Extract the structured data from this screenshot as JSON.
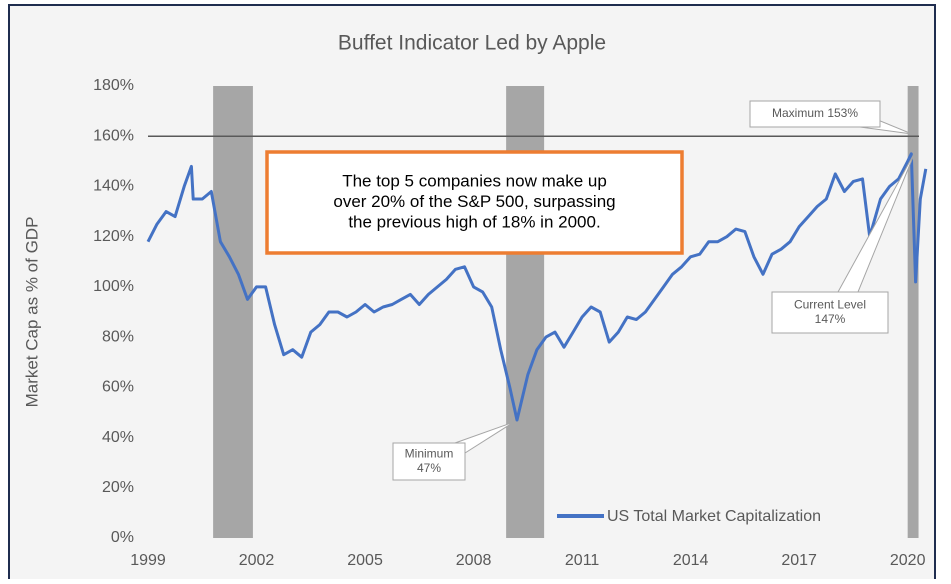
{
  "chart_data": {
    "type": "line",
    "title": "Buffet Indicator Led by Apple",
    "y_label": "Market Cap as % of GDP",
    "x": [
      1999.0,
      1999.25,
      1999.5,
      1999.75,
      2000.0,
      2000.2,
      2000.25,
      2000.5,
      2000.75,
      2001.0,
      2001.25,
      2001.5,
      2001.75,
      2002.0,
      2002.25,
      2002.5,
      2002.75,
      2003.0,
      2003.25,
      2003.5,
      2003.75,
      2004.0,
      2004.25,
      2004.5,
      2004.75,
      2005.0,
      2005.25,
      2005.5,
      2005.75,
      2006.0,
      2006.25,
      2006.5,
      2006.75,
      2007.0,
      2007.25,
      2007.5,
      2007.75,
      2008.0,
      2008.25,
      2008.5,
      2008.75,
      2009.0,
      2009.2,
      2009.5,
      2009.75,
      2010.0,
      2010.25,
      2010.5,
      2010.75,
      2011.0,
      2011.25,
      2011.5,
      2011.75,
      2012.0,
      2012.25,
      2012.5,
      2012.75,
      2013.0,
      2013.25,
      2013.5,
      2013.75,
      2014.0,
      2014.25,
      2014.5,
      2014.75,
      2015.0,
      2015.25,
      2015.5,
      2015.75,
      2016.0,
      2016.25,
      2016.5,
      2016.75,
      2017.0,
      2017.25,
      2017.5,
      2017.75,
      2018.0,
      2018.25,
      2018.5,
      2018.75,
      2018.95,
      2019.25,
      2019.5,
      2019.75,
      2020.0,
      2020.1,
      2020.22,
      2020.35,
      2020.5
    ],
    "series": [
      {
        "name": "US Total Market Capitalization",
        "color": "#4472c4",
        "values": [
          118,
          125,
          130,
          128,
          140,
          148,
          135,
          135,
          138,
          118,
          112,
          105,
          95,
          100,
          100,
          85,
          73,
          75,
          72,
          82,
          85,
          90,
          90,
          88,
          90,
          93,
          90,
          92,
          93,
          95,
          97,
          93,
          97,
          100,
          103,
          107,
          108,
          100,
          98,
          92,
          75,
          60,
          47,
          65,
          75,
          80,
          82,
          76,
          82,
          88,
          92,
          90,
          78,
          82,
          88,
          87,
          90,
          95,
          100,
          105,
          108,
          112,
          113,
          118,
          118,
          120,
          123,
          122,
          112,
          105,
          113,
          115,
          118,
          124,
          128,
          132,
          135,
          145,
          138,
          142,
          143,
          120,
          135,
          140,
          143,
          150,
          153,
          102,
          135,
          147
        ]
      }
    ],
    "shaded_periods": [
      [
        2000.8,
        2001.9
      ],
      [
        2008.9,
        2009.95
      ],
      [
        2020.0,
        2020.3
      ]
    ],
    "shade_color": "#a6a6a6",
    "reference_line": 160,
    "xlim": [
      1999,
      2020.7
    ],
    "xticks": [
      1999,
      2002,
      2005,
      2008,
      2011,
      2014,
      2017,
      2020
    ],
    "ylim": [
      0,
      180
    ],
    "yticks": [
      {
        "value": 0,
        "label": "0%"
      },
      {
        "value": 20,
        "label": "20%"
      },
      {
        "value": 40,
        "label": "40%"
      },
      {
        "value": 60,
        "label": "60%"
      },
      {
        "value": 80,
        "label": "80%"
      },
      {
        "value": 100,
        "label": "100%"
      },
      {
        "value": 120,
        "label": "120%"
      },
      {
        "value": 140,
        "label": "140%"
      },
      {
        "value": 160,
        "label": "160%"
      },
      {
        "value": 180,
        "label": "180%"
      }
    ],
    "legend": "bottom-right",
    "annotations": [
      {
        "lines": [
          "Maximum 153%"
        ]
      },
      {
        "lines": [
          "Current Level",
          "147%"
        ]
      },
      {
        "lines": [
          "Minimum",
          "47%"
        ]
      },
      {
        "lines": [
          "The top 5 companies now make up",
          "over 20% of the S&P 500, surpassing",
          "the previous high of 18% in 2000."
        ]
      }
    ]
  }
}
